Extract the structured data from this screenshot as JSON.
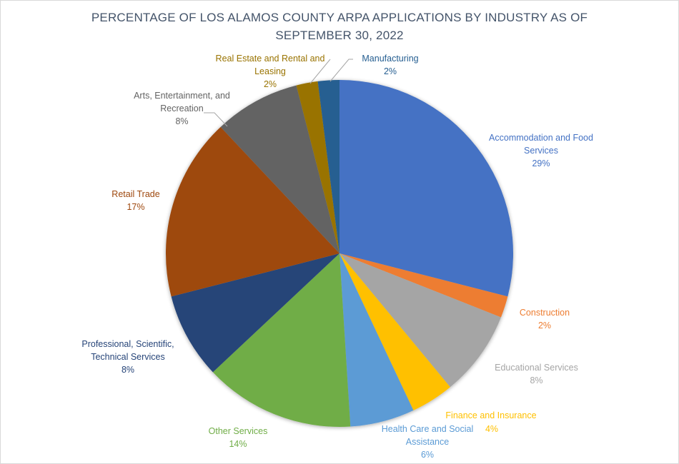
{
  "chart_data": {
    "type": "pie",
    "title_line1": "PERCENTAGE OF LOS ALAMOS COUNTY ARPA APPLICATIONS BY INDUSTRY AS OF",
    "title_line2": "SEPTEMBER 30, 2022",
    "start_angle_deg": 0,
    "direction": "clockwise",
    "categories": [
      "Accommodation and Food Services",
      "Construction",
      "Educational Services",
      "Finance and Insurance",
      "Health Care and Social Assistance",
      "Other Services",
      "Professional, Scientific, Technical Services",
      "Retail Trade",
      "Arts, Entertainment, and Recreation",
      "Real Estate and Rental and Leasing",
      "Manufacturing"
    ],
    "values": [
      29,
      2,
      8,
      4,
      6,
      14,
      8,
      17,
      8,
      2,
      2
    ],
    "colors": [
      "#4472c4",
      "#ed7d31",
      "#a5a5a5",
      "#ffc000",
      "#5b9bd5",
      "#70ad47",
      "#264478",
      "#9e480e",
      "#636363",
      "#997300",
      "#255e91"
    ],
    "labels": [
      {
        "line1": "Accommodation and Food",
        "line2": "Services",
        "pct": "29%"
      },
      {
        "line1": "Construction",
        "pct": "2%"
      },
      {
        "line1": "Educational Services",
        "pct": "8%"
      },
      {
        "line1": "Finance and Insurance",
        "pct": "4%"
      },
      {
        "line1": "Health Care and Social",
        "line2": "Assistance",
        "pct": "6%"
      },
      {
        "line1": "Other Services",
        "pct": "14%"
      },
      {
        "line1": "Professional, Scientific,",
        "line2": "Technical Services",
        "pct": "8%"
      },
      {
        "line1": "Retail Trade",
        "pct": "17%"
      },
      {
        "line1": "Arts, Entertainment, and",
        "line2": "Recreation",
        "pct": "8%"
      },
      {
        "line1": "Real Estate and Rental and",
        "line2": "Leasing",
        "pct": "2%"
      },
      {
        "line1": "Manufacturing",
        "pct": "2%"
      }
    ],
    "label_colors": [
      "#4472c4",
      "#ed7d31",
      "#a5a5a5",
      "#ffc000",
      "#5b9bd5",
      "#70ad47",
      "#264478",
      "#9e480e",
      "#636363",
      "#997300",
      "#255e91"
    ],
    "legend": "none (data labels)"
  }
}
